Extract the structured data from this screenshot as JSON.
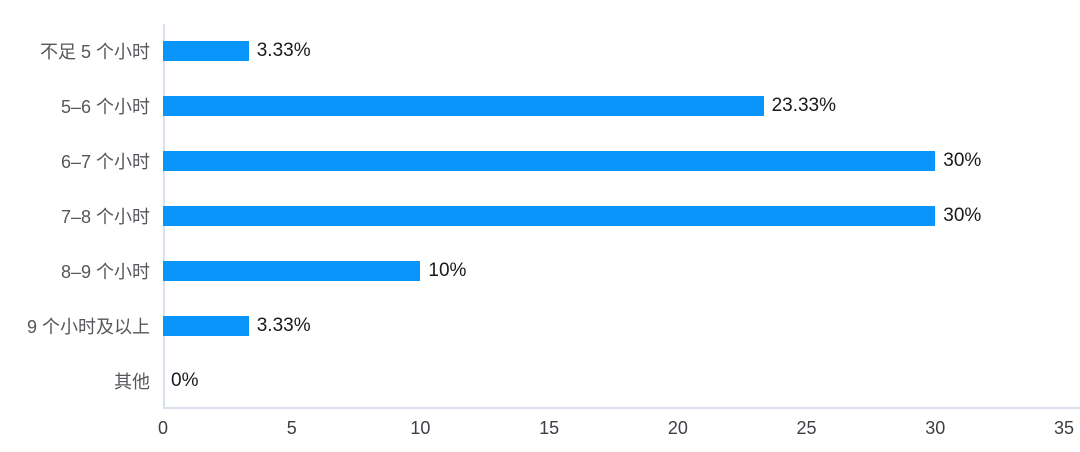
{
  "chart_data": {
    "type": "bar",
    "orientation": "horizontal",
    "title": "",
    "xlabel": "",
    "ylabel": "",
    "categories": [
      "不足 5 个小时",
      "5–6 个小时",
      "6–7 个小时",
      "7–8 个小时",
      "8–9 个小时",
      "9 个小时及以上",
      "其他"
    ],
    "values": [
      3.33,
      23.33,
      30,
      30,
      10,
      3.33,
      0
    ],
    "value_labels": [
      "3.33%",
      "23.33%",
      "30%",
      "30%",
      "10%",
      "3.33%",
      "0%"
    ],
    "x_ticks": [
      0,
      5,
      10,
      15,
      20,
      25,
      30,
      35
    ],
    "xlim": [
      0,
      35
    ],
    "grid": false,
    "legend": false,
    "colors": {
      "bar": "#0a95fb",
      "axis": "#dbe1ec",
      "category_text": "#55575c",
      "value_text": "#17191c",
      "tick_text": "#3d4045"
    }
  }
}
